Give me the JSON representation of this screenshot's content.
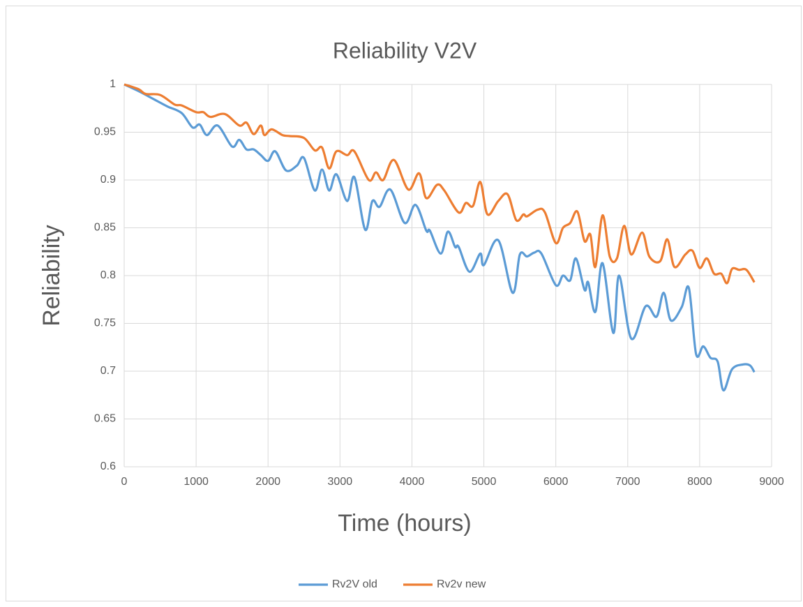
{
  "chart_data": {
    "type": "line",
    "title": "Reliability V2V",
    "xlabel": "Time (hours)",
    "ylabel": "Reliability",
    "xlim": [
      0,
      9000
    ],
    "xticks": [
      0,
      1000,
      2000,
      3000,
      4000,
      5000,
      6000,
      7000,
      8000,
      9000
    ],
    "ylim": [
      0.6,
      1
    ],
    "yticks": [
      0.6,
      0.65,
      0.7,
      0.75,
      0.8,
      0.85,
      0.9,
      0.95,
      1
    ],
    "grid": true,
    "legend": "bottom",
    "series": [
      {
        "name": "Rv2V old",
        "color": "#5b9bd5",
        "x": [
          0,
          200,
          400,
          600,
          800,
          950,
          1050,
          1150,
          1300,
          1500,
          1600,
          1700,
          1800,
          1900,
          2000,
          2100,
          2250,
          2400,
          2500,
          2650,
          2750,
          2850,
          2950,
          3100,
          3200,
          3350,
          3450,
          3550,
          3700,
          3900,
          4050,
          4200,
          4250,
          4400,
          4500,
          4600,
          4650,
          4800,
          4950,
          5000,
          5200,
          5400,
          5500,
          5600,
          5700,
          5800,
          6000,
          6100,
          6200,
          6280,
          6400,
          6450,
          6550,
          6650,
          6800,
          6880,
          7050,
          7250,
          7400,
          7500,
          7600,
          7750,
          7850,
          7950,
          8050,
          8150,
          8250,
          8330,
          8450,
          8600,
          8700,
          8760
        ],
        "values": [
          1,
          0.993,
          0.985,
          0.977,
          0.97,
          0.955,
          0.958,
          0.947,
          0.957,
          0.935,
          0.942,
          0.932,
          0.932,
          0.926,
          0.92,
          0.93,
          0.91,
          0.915,
          0.923,
          0.889,
          0.911,
          0.889,
          0.906,
          0.878,
          0.903,
          0.848,
          0.878,
          0.872,
          0.89,
          0.855,
          0.874,
          0.847,
          0.847,
          0.823,
          0.846,
          0.83,
          0.83,
          0.804,
          0.823,
          0.811,
          0.837,
          0.782,
          0.822,
          0.82,
          0.824,
          0.823,
          0.79,
          0.8,
          0.795,
          0.818,
          0.785,
          0.793,
          0.762,
          0.813,
          0.74,
          0.8,
          0.734,
          0.768,
          0.757,
          0.782,
          0.753,
          0.767,
          0.787,
          0.718,
          0.726,
          0.714,
          0.71,
          0.68,
          0.702,
          0.707,
          0.706,
          0.699
        ]
      },
      {
        "name": "Rv2v new",
        "color": "#ed7d31",
        "x": [
          0,
          200,
          300,
          500,
          700,
          800,
          1000,
          1100,
          1200,
          1400,
          1600,
          1700,
          1800,
          1900,
          1950,
          2050,
          2200,
          2300,
          2500,
          2650,
          2750,
          2850,
          2950,
          3100,
          3200,
          3400,
          3500,
          3600,
          3750,
          3950,
          4100,
          4200,
          4350,
          4450,
          4650,
          4750,
          4850,
          4950,
          5050,
          5200,
          5330,
          5450,
          5550,
          5600,
          5750,
          5850,
          6000,
          6100,
          6200,
          6300,
          6400,
          6480,
          6550,
          6650,
          6750,
          6850,
          6950,
          7050,
          7200,
          7300,
          7450,
          7550,
          7650,
          7800,
          7900,
          8000,
          8100,
          8200,
          8300,
          8380,
          8450,
          8550,
          8650,
          8760
        ],
        "values": [
          1,
          0.995,
          0.99,
          0.989,
          0.979,
          0.978,
          0.971,
          0.971,
          0.966,
          0.969,
          0.957,
          0.96,
          0.948,
          0.957,
          0.947,
          0.953,
          0.947,
          0.946,
          0.944,
          0.931,
          0.934,
          0.912,
          0.93,
          0.926,
          0.93,
          0.9,
          0.908,
          0.9,
          0.921,
          0.89,
          0.907,
          0.881,
          0.895,
          0.889,
          0.866,
          0.876,
          0.873,
          0.898,
          0.864,
          0.878,
          0.885,
          0.858,
          0.864,
          0.862,
          0.869,
          0.866,
          0.834,
          0.85,
          0.855,
          0.867,
          0.836,
          0.843,
          0.809,
          0.863,
          0.82,
          0.818,
          0.852,
          0.822,
          0.845,
          0.82,
          0.815,
          0.838,
          0.809,
          0.822,
          0.826,
          0.808,
          0.818,
          0.802,
          0.802,
          0.792,
          0.807,
          0.806,
          0.806,
          0.793
        ]
      }
    ]
  }
}
